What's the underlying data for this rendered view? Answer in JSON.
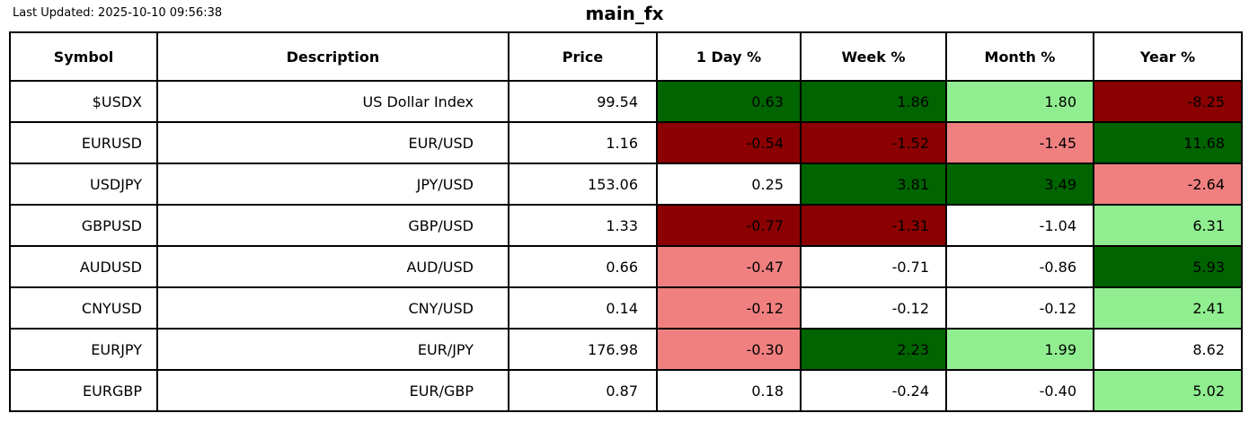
{
  "meta": {
    "last_updated": "Last Updated: 2025-10-10 09:56:38",
    "title": "main_fx"
  },
  "palette": {
    "strong_gain": "#006400",
    "mild_gain": "#90EE90",
    "strong_loss": "#8B0000",
    "mild_loss": "#F08080",
    "neutral": "#FFFFFF"
  },
  "table": {
    "columns": [
      "Symbol",
      "Description",
      "Price",
      "1 Day %",
      "Week %",
      "Month %",
      "Year %"
    ],
    "rows": [
      {
        "symbol": "$USDX",
        "description": "US Dollar Index",
        "price": "99.54",
        "day": {
          "value": "0.63",
          "bg": "#006400"
        },
        "week": {
          "value": "1.86",
          "bg": "#006400"
        },
        "month": {
          "value": "1.80",
          "bg": "#90EE90"
        },
        "year": {
          "value": "-8.25",
          "bg": "#8B0000"
        }
      },
      {
        "symbol": "EURUSD",
        "description": "EUR/USD",
        "price": "1.16",
        "day": {
          "value": "-0.54",
          "bg": "#8B0000"
        },
        "week": {
          "value": "-1.52",
          "bg": "#8B0000"
        },
        "month": {
          "value": "-1.45",
          "bg": "#F08080"
        },
        "year": {
          "value": "11.68",
          "bg": "#006400"
        }
      },
      {
        "symbol": "USDJPY",
        "description": "JPY/USD",
        "price": "153.06",
        "day": {
          "value": "0.25",
          "bg": "#FFFFFF"
        },
        "week": {
          "value": "3.81",
          "bg": "#006400"
        },
        "month": {
          "value": "3.49",
          "bg": "#006400"
        },
        "year": {
          "value": "-2.64",
          "bg": "#F08080"
        }
      },
      {
        "symbol": "GBPUSD",
        "description": "GBP/USD",
        "price": "1.33",
        "day": {
          "value": "-0.77",
          "bg": "#8B0000"
        },
        "week": {
          "value": "-1.31",
          "bg": "#8B0000"
        },
        "month": {
          "value": "-1.04",
          "bg": "#FFFFFF"
        },
        "year": {
          "value": "6.31",
          "bg": "#90EE90"
        }
      },
      {
        "symbol": "AUDUSD",
        "description": "AUD/USD",
        "price": "0.66",
        "day": {
          "value": "-0.47",
          "bg": "#F08080"
        },
        "week": {
          "value": "-0.71",
          "bg": "#FFFFFF"
        },
        "month": {
          "value": "-0.86",
          "bg": "#FFFFFF"
        },
        "year": {
          "value": "5.93",
          "bg": "#006400"
        }
      },
      {
        "symbol": "CNYUSD",
        "description": "CNY/USD",
        "price": "0.14",
        "day": {
          "value": "-0.12",
          "bg": "#F08080"
        },
        "week": {
          "value": "-0.12",
          "bg": "#FFFFFF"
        },
        "month": {
          "value": "-0.12",
          "bg": "#FFFFFF"
        },
        "year": {
          "value": "2.41",
          "bg": "#90EE90"
        }
      },
      {
        "symbol": "EURJPY",
        "description": "EUR/JPY",
        "price": "176.98",
        "day": {
          "value": "-0.30",
          "bg": "#F08080"
        },
        "week": {
          "value": "2.23",
          "bg": "#006400"
        },
        "month": {
          "value": "1.99",
          "bg": "#90EE90"
        },
        "year": {
          "value": "8.62",
          "bg": "#FFFFFF"
        }
      },
      {
        "symbol": "EURGBP",
        "description": "EUR/GBP",
        "price": "0.87",
        "day": {
          "value": "0.18",
          "bg": "#FFFFFF"
        },
        "week": {
          "value": "-0.24",
          "bg": "#FFFFFF"
        },
        "month": {
          "value": "-0.40",
          "bg": "#FFFFFF"
        },
        "year": {
          "value": "5.02",
          "bg": "#90EE90"
        }
      }
    ]
  },
  "chart_data": {
    "type": "table",
    "title": "main_fx",
    "last_updated": "2025-10-10 09:56:38",
    "columns": [
      "Symbol",
      "Description",
      "Price",
      "1 Day %",
      "Week %",
      "Month %",
      "Year %"
    ],
    "rows": [
      [
        "$USDX",
        "US Dollar Index",
        99.54,
        0.63,
        1.86,
        1.8,
        -8.25
      ],
      [
        "EURUSD",
        "EUR/USD",
        1.16,
        -0.54,
        -1.52,
        -1.45,
        11.68
      ],
      [
        "USDJPY",
        "JPY/USD",
        153.06,
        0.25,
        3.81,
        3.49,
        -2.64
      ],
      [
        "GBPUSD",
        "GBP/USD",
        1.33,
        -0.77,
        -1.31,
        -1.04,
        6.31
      ],
      [
        "AUDUSD",
        "AUD/USD",
        0.66,
        -0.47,
        -0.71,
        -0.86,
        5.93
      ],
      [
        "CNYUSD",
        "CNY/USD",
        0.14,
        -0.12,
        -0.12,
        -0.12,
        2.41
      ],
      [
        "EURJPY",
        "EUR/JPY",
        176.98,
        -0.3,
        2.23,
        1.99,
        8.62
      ],
      [
        "EURGBP",
        "EUR/GBP",
        0.87,
        0.18,
        -0.24,
        -0.4,
        5.02
      ]
    ],
    "cell_colors": [
      [
        "darkgreen",
        "darkgreen",
        "lightgreen",
        "darkred"
      ],
      [
        "darkred",
        "darkred",
        "lightcoral",
        "darkgreen"
      ],
      [
        "white",
        "darkgreen",
        "darkgreen",
        "lightcoral"
      ],
      [
        "darkred",
        "darkred",
        "white",
        "lightgreen"
      ],
      [
        "lightcoral",
        "white",
        "white",
        "darkgreen"
      ],
      [
        "lightcoral",
        "white",
        "white",
        "lightgreen"
      ],
      [
        "lightcoral",
        "darkgreen",
        "lightgreen",
        "white"
      ],
      [
        "white",
        "white",
        "white",
        "lightgreen"
      ]
    ]
  }
}
